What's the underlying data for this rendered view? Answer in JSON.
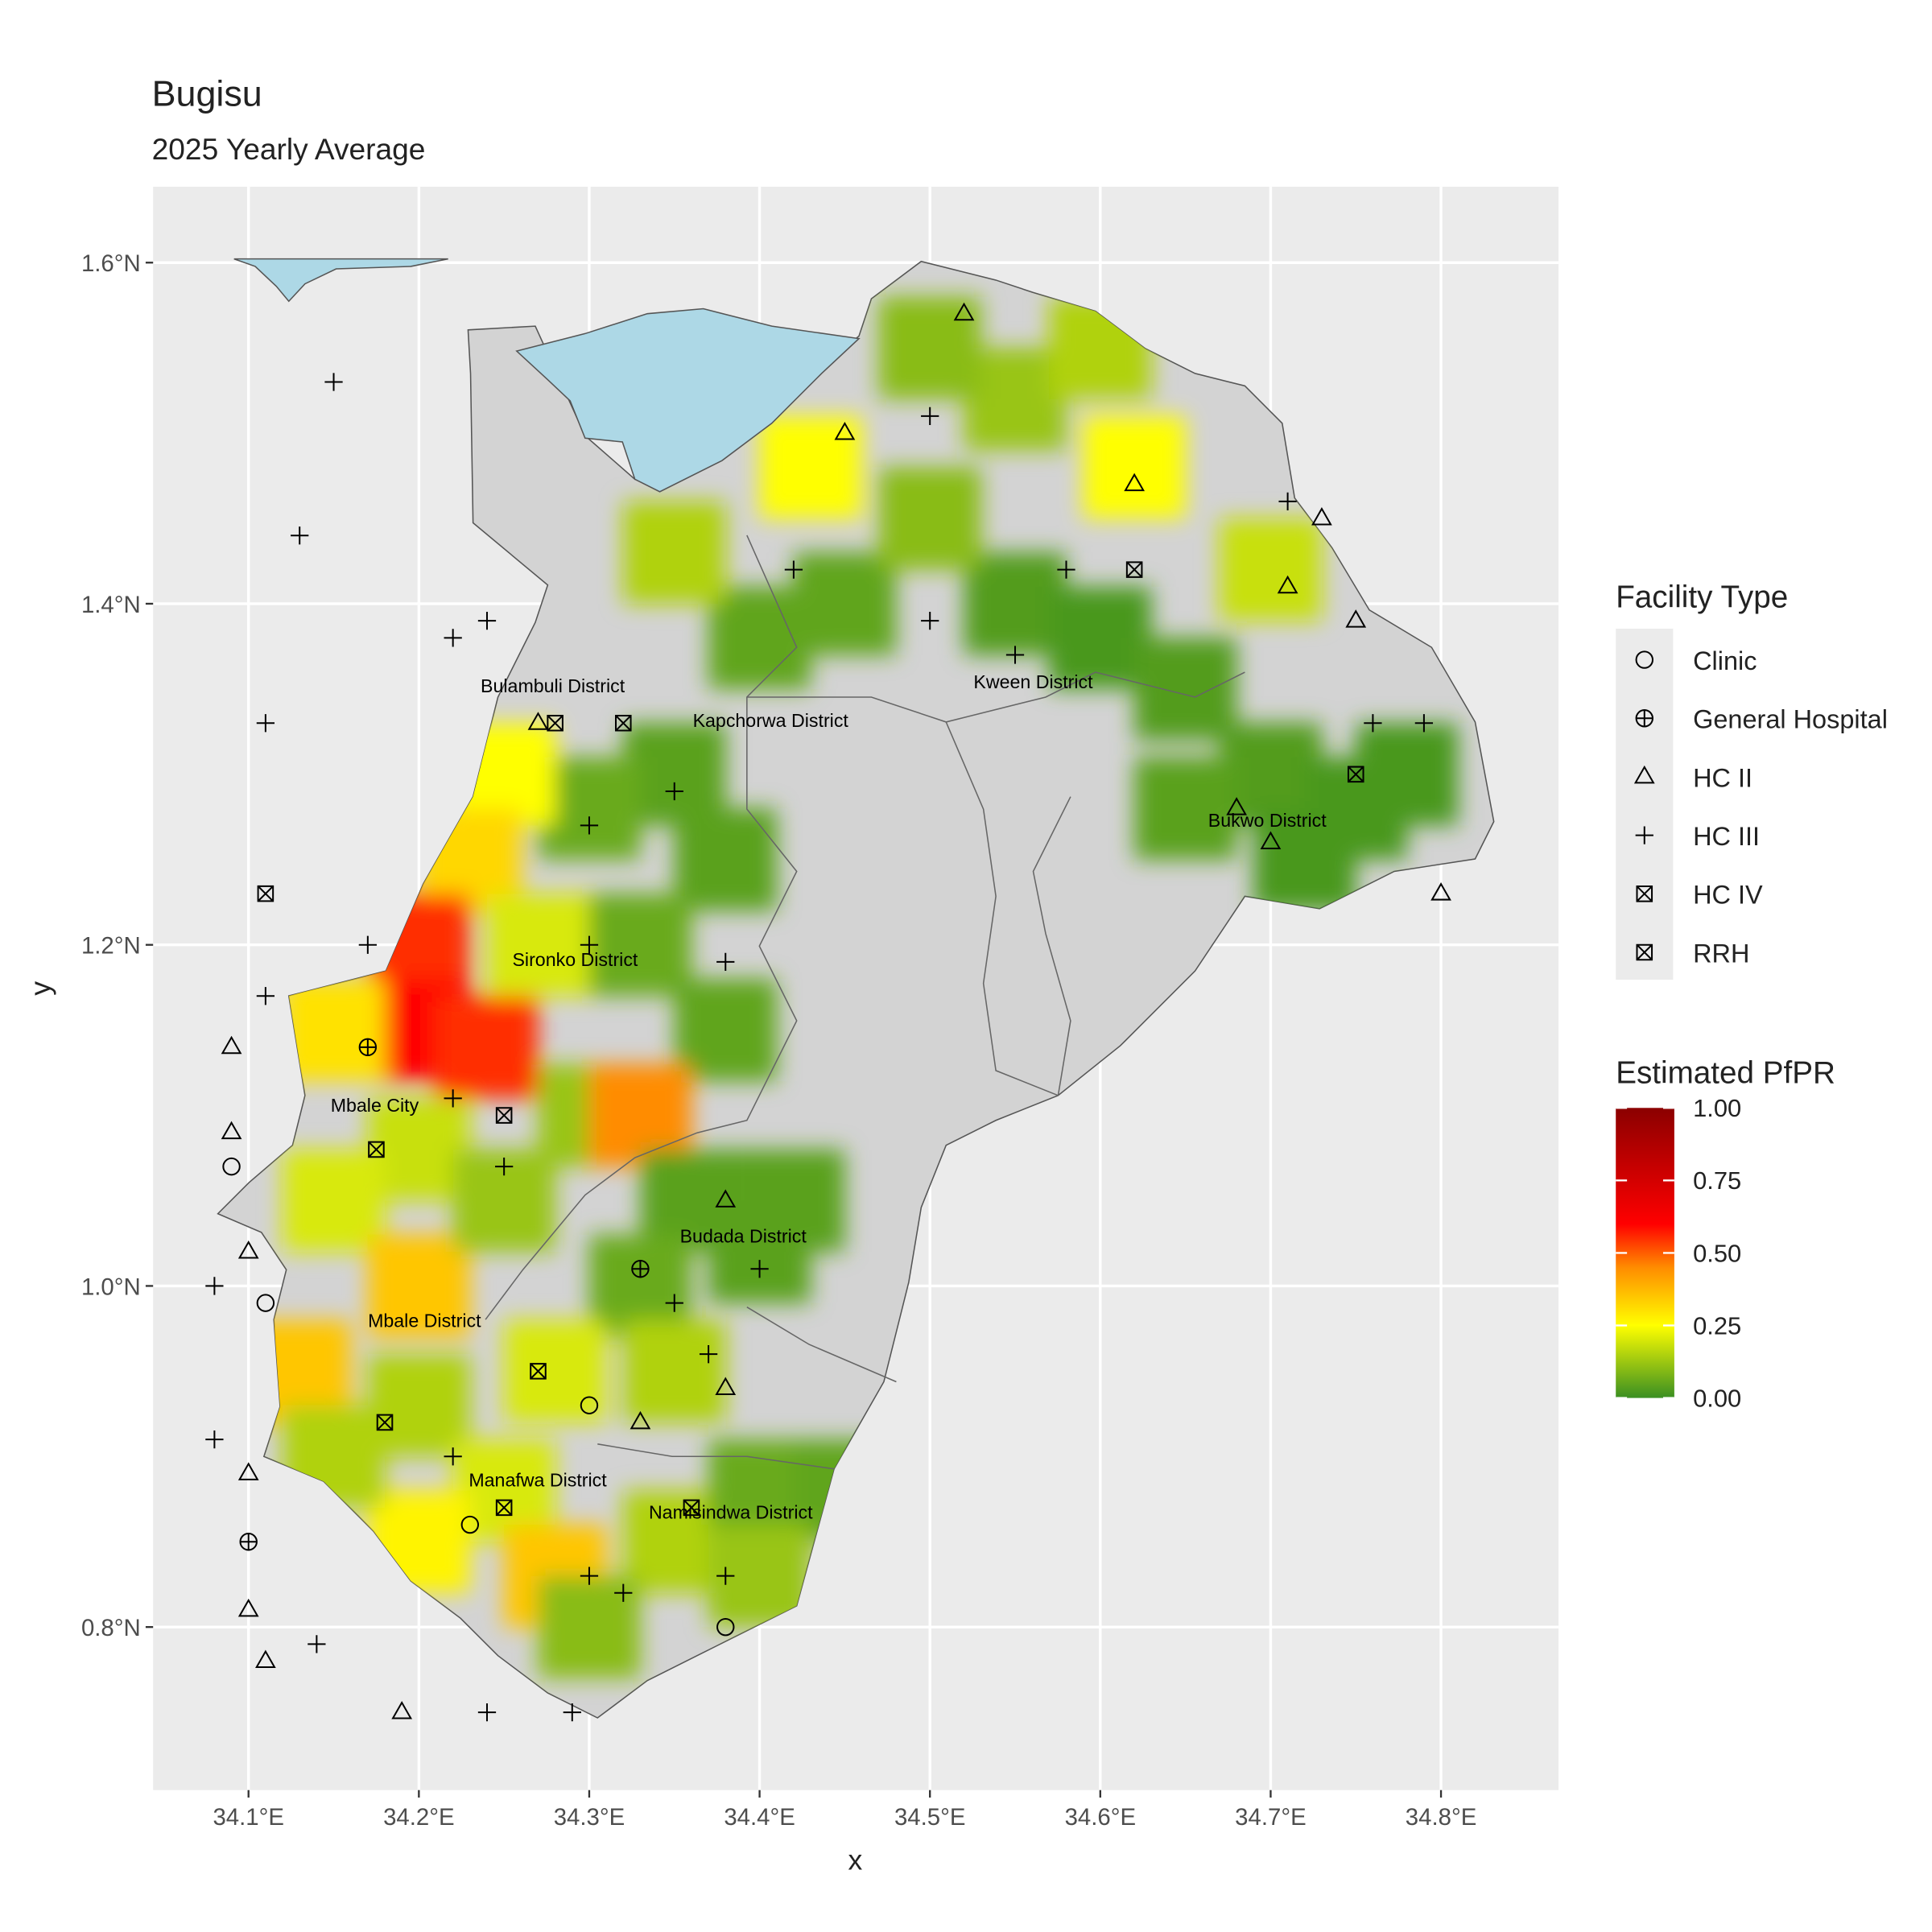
{
  "chart_data": {
    "type": "map",
    "title": "Bugisu",
    "subtitle": "2025 Yearly Average",
    "x_label": "x",
    "y_label": "y",
    "xlim": [
      34.044,
      34.869
    ],
    "ylim": [
      0.7044,
      1.6445
    ],
    "xticks": [
      {
        "value": 34.1,
        "label": "34.1°E"
      },
      {
        "value": 34.2,
        "label": "34.2°E"
      },
      {
        "value": 34.3,
        "label": "34.3°E"
      },
      {
        "value": 34.4,
        "label": "34.4°E"
      },
      {
        "value": 34.5,
        "label": "34.5°E"
      },
      {
        "value": 34.6,
        "label": "34.6°E"
      },
      {
        "value": 34.7,
        "label": "34.7°E"
      },
      {
        "value": 34.8,
        "label": "34.8°E"
      }
    ],
    "yticks": [
      {
        "value": 0.8,
        "label": "0.8°N"
      },
      {
        "value": 1.0,
        "label": "1.0°N"
      },
      {
        "value": 1.2,
        "label": "1.2°N"
      },
      {
        "value": 1.4,
        "label": "1.4°N"
      },
      {
        "value": 1.6,
        "label": "1.6°N"
      }
    ],
    "grid": true,
    "district_labels": [
      "Bulambuli District",
      "Kapchorwa District",
      "Kween District",
      "Bukwo District",
      "Sironko District",
      "Mbale City",
      "Budada District",
      "Mbale District",
      "Manafwa District",
      "Namisindwa District"
    ],
    "legend_title": "Facility Type",
    "series": [
      {
        "name": "Clinic",
        "lon": [
          34.09,
          34.11,
          34.23,
          34.3,
          34.38
        ],
        "lat": [
          1.07,
          0.99,
          0.86,
          0.93,
          0.8
        ]
      },
      {
        "name": "General Hospital",
        "lon": [
          34.1,
          34.33,
          34.17
        ],
        "lat": [
          0.85,
          1.01,
          1.14
        ]
      },
      {
        "name": "HC II",
        "lon": [
          34.52,
          34.45,
          34.62,
          34.73,
          34.71,
          34.75,
          34.68,
          34.7,
          34.8,
          34.09,
          34.09,
          34.1,
          34.1,
          34.1,
          34.11,
          34.19,
          34.27,
          34.38,
          34.38,
          34.33
        ],
        "lat": [
          1.57,
          1.5,
          1.47,
          1.45,
          1.41,
          1.39,
          1.28,
          1.26,
          1.23,
          1.14,
          1.09,
          1.02,
          0.89,
          0.81,
          0.78,
          0.75,
          1.33,
          1.05,
          0.94,
          0.92
        ]
      },
      {
        "name": "HC III",
        "lon": [
          34.15,
          34.13,
          34.24,
          34.22,
          34.11,
          34.17,
          34.11,
          34.08,
          34.08,
          34.14,
          34.24,
          34.29,
          34.5,
          34.42,
          34.5,
          34.55,
          34.58,
          34.71,
          34.76,
          34.79,
          34.3,
          34.35,
          34.38,
          34.3,
          34.22,
          34.25,
          34.35,
          34.4,
          34.37,
          34.22,
          34.3,
          34.32,
          34.38
        ],
        "lat": [
          1.53,
          1.44,
          1.39,
          1.38,
          1.33,
          1.2,
          1.17,
          1.0,
          0.91,
          0.79,
          0.75,
          0.75,
          1.51,
          1.42,
          1.39,
          1.37,
          1.42,
          1.46,
          1.33,
          1.33,
          1.27,
          1.29,
          1.19,
          1.2,
          1.11,
          1.07,
          0.99,
          1.01,
          0.96,
          0.9,
          0.83,
          0.82,
          0.83
        ]
      },
      {
        "name": "HC IV",
        "lon": [
          34.11,
          34.28,
          34.32,
          34.18,
          34.25,
          34.36,
          34.62,
          34.75,
          34.25,
          34.27
        ],
        "lat": [
          1.23,
          1.33,
          1.33,
          0.92,
          0.87,
          0.87,
          1.42,
          1.3,
          1.1,
          0.95
        ]
      },
      {
        "name": "RRH",
        "lon": [
          34.175
        ],
        "lat": [
          1.08
        ]
      }
    ],
    "colorbar_title": "Estimated PfPR",
    "color_stops": [
      0,
      0.25,
      0.45,
      0.6,
      1
    ],
    "colors": [
      "#3a8f22",
      "#ffff00",
      "#ff8c00",
      "#ff0000",
      "#8b0000"
    ],
    "colorbar_ticks": [
      {
        "value": 0,
        "label": "0.00"
      },
      {
        "value": 0.25,
        "label": "0.25"
      },
      {
        "value": 0.5,
        "label": "0.50"
      },
      {
        "value": 0.75,
        "label": "0.75"
      },
      {
        "value": 1,
        "label": "1.00"
      }
    ],
    "pfpr": {
      "lon": [
        34.45,
        34.55,
        34.6,
        34.5,
        34.4,
        34.65,
        34.7,
        34.75,
        34.72,
        34.65,
        34.78,
        34.55,
        34.6,
        34.5,
        34.62,
        34.43,
        34.7,
        34.35,
        34.35,
        34.38,
        34.33,
        34.38,
        34.3,
        34.25,
        34.23,
        34.2,
        34.2,
        34.24,
        34.27,
        34.15,
        34.2,
        34.15,
        34.2,
        34.13,
        34.25,
        34.3,
        34.33,
        34.36,
        34.4,
        34.33,
        34.42,
        34.28,
        34.2,
        34.25,
        34.2,
        34.28,
        34.35,
        34.4,
        34.45,
        34.35,
        34.3,
        34.4,
        34.15
      ],
      "lat": [
        1.4,
        1.4,
        1.38,
        1.45,
        1.38,
        1.35,
        1.3,
        1.28,
        1.25,
        1.28,
        1.3,
        1.52,
        1.55,
        1.55,
        1.48,
        1.48,
        1.42,
        1.43,
        1.3,
        1.25,
        1.2,
        1.15,
        1.28,
        1.3,
        1.25,
        1.2,
        1.15,
        1.14,
        1.2,
        1.15,
        1.08,
        1.05,
        1.0,
        0.95,
        1.05,
        1.1,
        1.1,
        1.05,
        1.02,
        1.0,
        1.05,
        0.95,
        0.93,
        0.88,
        0.85,
        0.83,
        0.85,
        0.88,
        0.88,
        0.95,
        0.8,
        0.83,
        0.9
      ],
      "values": [
        0.05,
        0.03,
        0.02,
        0.1,
        0.05,
        0.03,
        0.03,
        0.02,
        0.02,
        0.04,
        0.02,
        0.12,
        0.15,
        0.1,
        0.25,
        0.25,
        0.18,
        0.15,
        0.04,
        0.04,
        0.06,
        0.05,
        0.06,
        0.25,
        0.32,
        0.55,
        0.6,
        0.55,
        0.2,
        0.3,
        0.18,
        0.2,
        0.35,
        0.35,
        0.12,
        0.12,
        0.45,
        0.04,
        0.04,
        0.06,
        0.04,
        0.2,
        0.15,
        0.2,
        0.27,
        0.35,
        0.15,
        0.06,
        0.05,
        0.15,
        0.1,
        0.12,
        0.15
      ]
    }
  }
}
